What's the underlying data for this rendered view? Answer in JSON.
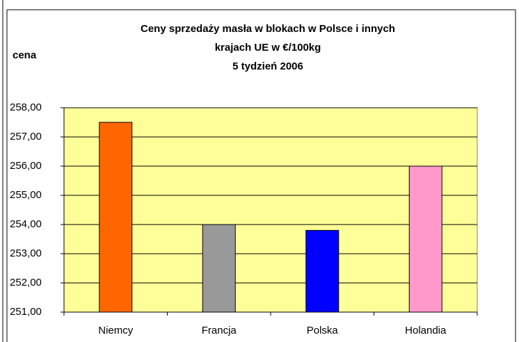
{
  "chart_data": {
    "type": "bar",
    "title": [
      "Ceny sprzedaży masła w blokach w Polsce i  innych",
      "krajach UE w €/100kg",
      "5 tydzień 2006"
    ],
    "ylabel": "cena",
    "categories": [
      "Niemcy",
      "Francja",
      "Polska",
      "Holandia"
    ],
    "values": [
      257.5,
      254.0,
      253.8,
      256.0
    ],
    "colors": [
      "#ff6600",
      "#999999",
      "#0000ff",
      "#ff99cc"
    ],
    "ylim": [
      251,
      258
    ],
    "yticks": [
      {
        "value": 251,
        "label": "251,00"
      },
      {
        "value": 252,
        "label": "252,00"
      },
      {
        "value": 253,
        "label": "253,00"
      },
      {
        "value": 254,
        "label": "254,00"
      },
      {
        "value": 255,
        "label": "255,00"
      },
      {
        "value": 256,
        "label": "256,00"
      },
      {
        "value": 257,
        "label": "257,00"
      },
      {
        "value": 258,
        "label": "258,00"
      }
    ],
    "grid": true,
    "plot_background": "#ffff99"
  }
}
